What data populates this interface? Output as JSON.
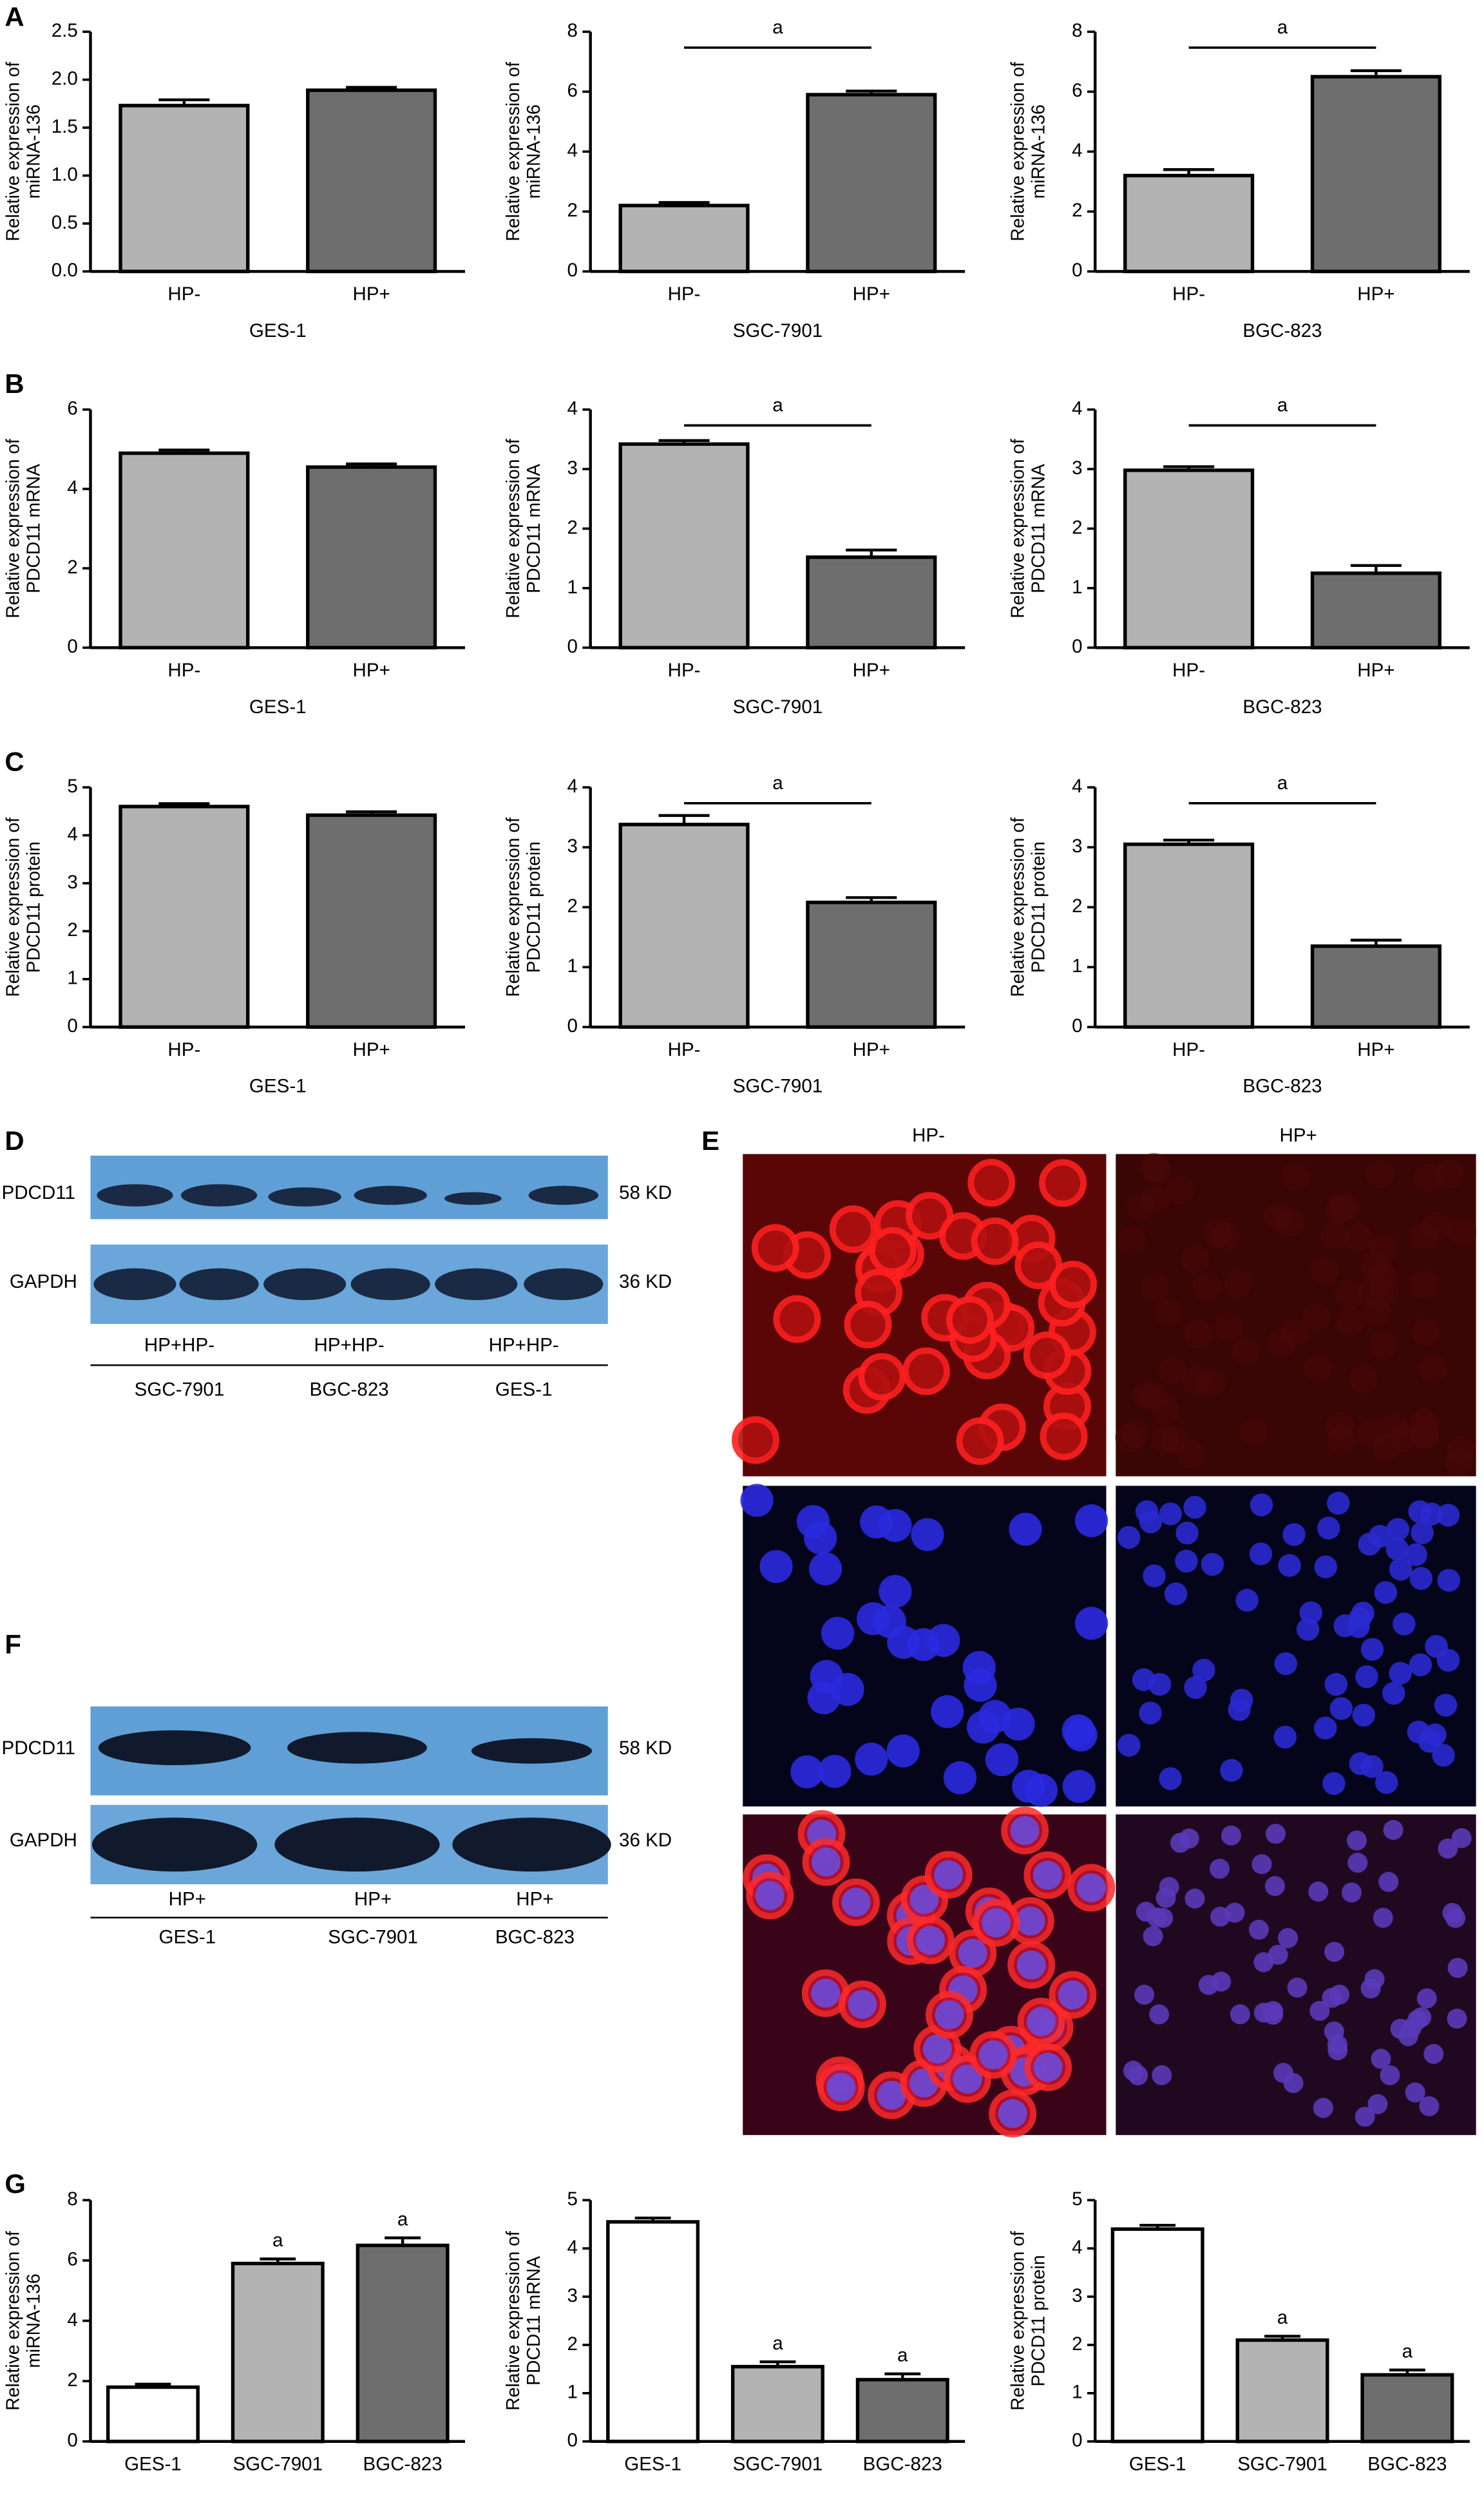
{
  "figure": {
    "panels": [
      "A",
      "B",
      "C",
      "D",
      "E",
      "F",
      "G"
    ],
    "blot_d": {
      "rows": [
        "PDCD11",
        "GAPDH"
      ],
      "sizes": [
        "58 KD",
        "36 KD"
      ],
      "lanes": [
        "HP+HP-",
        "HP+HP-",
        "HP+HP-"
      ],
      "groups": [
        "SGC-7901",
        "BGC-823",
        "GES-1"
      ]
    },
    "blot_f": {
      "rows": [
        "PDCD11",
        "GAPDH"
      ],
      "sizes": [
        "58 KD",
        "36 KD"
      ],
      "lanes": [
        "HP+",
        "HP+",
        "HP+"
      ],
      "groups": [
        "GES-1",
        "SGC-7901",
        "BGC-823"
      ]
    },
    "if_columns": [
      "HP-",
      "HP+"
    ]
  },
  "chart_data": [
    {
      "type": "bar",
      "ylabel": [
        "Relative expression of",
        "miRNA-136"
      ],
      "xlabel": "GES-1",
      "categories": [
        "HP-",
        "HP+"
      ],
      "values": [
        1.73,
        1.89
      ],
      "errors": [
        0.06,
        0.03
      ],
      "colors": [
        "#b3b3b3",
        "#6e6e6e"
      ],
      "ylim": [
        0,
        2.5
      ],
      "yticks": [
        {
          "value": 0,
          "label": "0.0"
        },
        {
          "value": 0.5,
          "label": "0.5"
        },
        {
          "value": 1,
          "label": "1.0"
        },
        {
          "value": 1.5,
          "label": "1.5"
        },
        {
          "value": 2,
          "label": "2.0"
        },
        {
          "value": 2.5,
          "label": "2.5"
        }
      ]
    },
    {
      "type": "bar",
      "ylabel": [
        "Relative expression of",
        "miRNA-136"
      ],
      "xlabel": "SGC-7901",
      "categories": [
        "HP-",
        "HP+"
      ],
      "values": [
        2.2,
        5.9
      ],
      "errors": [
        0.1,
        0.12
      ],
      "colors": [
        "#b3b3b3",
        "#6e6e6e"
      ],
      "ylim": [
        0,
        8
      ],
      "yticks": [
        0,
        2,
        4,
        6,
        8
      ],
      "significance": "a"
    },
    {
      "type": "bar",
      "ylabel": [
        "Relative expression of",
        "miRNA-136"
      ],
      "xlabel": "BGC-823",
      "categories": [
        "HP-",
        "HP+"
      ],
      "values": [
        3.2,
        6.5
      ],
      "errors": [
        0.2,
        0.2
      ],
      "colors": [
        "#b3b3b3",
        "#6e6e6e"
      ],
      "ylim": [
        0,
        8
      ],
      "yticks": [
        0,
        2,
        4,
        6,
        8
      ],
      "significance": "a"
    },
    {
      "type": "bar",
      "ylabel": [
        "Relative expression of",
        "PDCD11 mRNA"
      ],
      "xlabel": "GES-1",
      "categories": [
        "HP-",
        "HP+"
      ],
      "values": [
        4.9,
        4.55
      ],
      "errors": [
        0.08,
        0.08
      ],
      "colors": [
        "#b3b3b3",
        "#6e6e6e"
      ],
      "ylim": [
        0,
        6
      ],
      "yticks": [
        0,
        2,
        4,
        6
      ]
    },
    {
      "type": "bar",
      "ylabel": [
        "Relative expression of",
        "PDCD11 mRNA"
      ],
      "xlabel": "SGC-7901",
      "categories": [
        "HP-",
        "HP+"
      ],
      "values": [
        3.42,
        1.52
      ],
      "errors": [
        0.06,
        0.12
      ],
      "colors": [
        "#b3b3b3",
        "#6e6e6e"
      ],
      "ylim": [
        0,
        4
      ],
      "yticks": [
        0,
        1,
        2,
        3,
        4
      ],
      "significance": "a"
    },
    {
      "type": "bar",
      "ylabel": [
        "Relative expression of",
        "PDCD11 mRNA"
      ],
      "xlabel": "BGC-823",
      "categories": [
        "HP-",
        "HP+"
      ],
      "values": [
        2.98,
        1.25
      ],
      "errors": [
        0.06,
        0.13
      ],
      "colors": [
        "#b3b3b3",
        "#6e6e6e"
      ],
      "ylim": [
        0,
        4
      ],
      "yticks": [
        0,
        1,
        2,
        3,
        4
      ],
      "significance": "a"
    },
    {
      "type": "bar",
      "ylabel": [
        "Relative expression of",
        "PDCD11 protein"
      ],
      "xlabel": "GES-1",
      "categories": [
        "HP-",
        "HP+"
      ],
      "values": [
        4.6,
        4.42
      ],
      "errors": [
        0.06,
        0.07
      ],
      "colors": [
        "#b3b3b3",
        "#6e6e6e"
      ],
      "ylim": [
        0,
        5
      ],
      "yticks": [
        0,
        1,
        2,
        3,
        4,
        5
      ]
    },
    {
      "type": "bar",
      "ylabel": [
        "Relative expression of",
        "PDCD11 protein"
      ],
      "xlabel": "SGC-7901",
      "categories": [
        "HP-",
        "HP+"
      ],
      "values": [
        3.38,
        2.08
      ],
      "errors": [
        0.15,
        0.08
      ],
      "colors": [
        "#b3b3b3",
        "#6e6e6e"
      ],
      "ylim": [
        0,
        4
      ],
      "yticks": [
        0,
        1,
        2,
        3,
        4
      ],
      "significance": "a"
    },
    {
      "type": "bar",
      "ylabel": [
        "Relative expression of",
        "PDCD11 protein"
      ],
      "xlabel": "BGC-823",
      "categories": [
        "HP-",
        "HP+"
      ],
      "values": [
        3.05,
        1.35
      ],
      "errors": [
        0.07,
        0.1
      ],
      "colors": [
        "#b3b3b3",
        "#6e6e6e"
      ],
      "ylim": [
        0,
        4
      ],
      "yticks": [
        0,
        1,
        2,
        3,
        4
      ],
      "significance": "a"
    },
    {
      "type": "bar",
      "ylabel": [
        "Relative expression of",
        "miRNA-136"
      ],
      "categories": [
        "GES-1",
        "SGC-7901",
        "BGC-823"
      ],
      "values": [
        1.8,
        5.9,
        6.5
      ],
      "errors": [
        0.1,
        0.15,
        0.25
      ],
      "colors": [
        "#ffffff",
        "#b3b3b3",
        "#6e6e6e"
      ],
      "value_annotations": [
        null,
        "a",
        "a"
      ],
      "ylim": [
        0,
        8
      ],
      "yticks": [
        0,
        2,
        4,
        6,
        8
      ]
    },
    {
      "type": "bar",
      "ylabel": [
        "Relative expression of",
        "PDCD11 mRNA"
      ],
      "categories": [
        "GES-1",
        "SGC-7901",
        "BGC-823"
      ],
      "values": [
        4.55,
        1.55,
        1.28
      ],
      "errors": [
        0.08,
        0.1,
        0.12
      ],
      "colors": [
        "#ffffff",
        "#b3b3b3",
        "#6e6e6e"
      ],
      "value_annotations": [
        null,
        "a",
        "a"
      ],
      "ylim": [
        0,
        5
      ],
      "yticks": [
        0,
        1,
        2,
        3,
        4,
        5
      ]
    },
    {
      "type": "bar",
      "ylabel": [
        "Relative expression of",
        "PDCD11 protein"
      ],
      "categories": [
        "GES-1",
        "SGC-7901",
        "BGC-823"
      ],
      "values": [
        4.4,
        2.1,
        1.38
      ],
      "errors": [
        0.08,
        0.08,
        0.1
      ],
      "colors": [
        "#ffffff",
        "#b3b3b3",
        "#6e6e6e"
      ],
      "value_annotations": [
        null,
        "a",
        "a"
      ],
      "ylim": [
        0,
        5
      ],
      "yticks": [
        0,
        1,
        2,
        3,
        4,
        5
      ]
    }
  ]
}
